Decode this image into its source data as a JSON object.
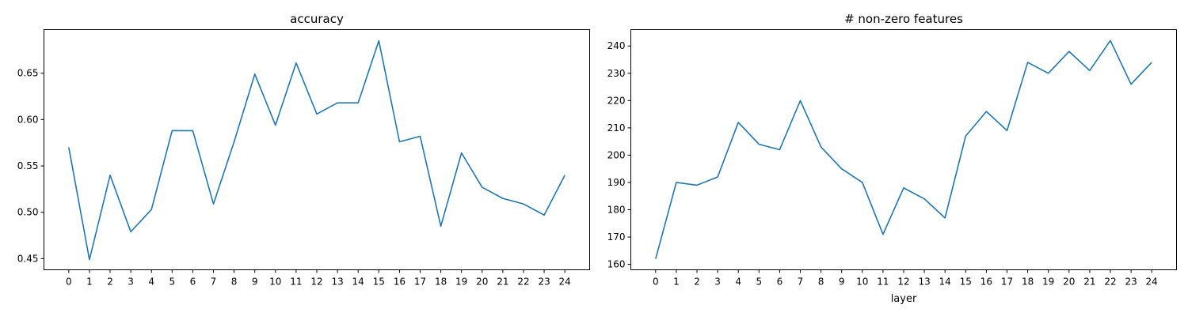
{
  "chart_data": [
    {
      "type": "line",
      "title": "accuracy",
      "xlabel": "",
      "ylabel": "",
      "x": [
        0,
        1,
        2,
        3,
        4,
        5,
        6,
        7,
        8,
        9,
        10,
        11,
        12,
        13,
        14,
        15,
        16,
        17,
        18,
        19,
        20,
        21,
        22,
        23,
        24
      ],
      "series": [
        {
          "name": "",
          "color": "#1f77b4",
          "values": [
            0.57,
            0.449,
            0.54,
            0.479,
            0.503,
            0.588,
            0.588,
            0.509,
            0.576,
            0.649,
            0.594,
            0.661,
            0.606,
            0.618,
            0.618,
            0.685,
            0.576,
            0.582,
            0.485,
            0.564,
            0.527,
            0.515,
            0.509,
            0.497,
            0.54
          ]
        }
      ],
      "xlim": [
        -1.2,
        25.2
      ],
      "ylim": [
        0.438,
        0.697
      ],
      "yticks": [
        0.45,
        0.5,
        0.55,
        0.6,
        0.65
      ],
      "ytick_labels": [
        "0.45",
        "0.50",
        "0.55",
        "0.60",
        "0.65"
      ],
      "grid": false,
      "legend": "none"
    },
    {
      "type": "line",
      "title": "# non-zero features",
      "xlabel": "layer",
      "ylabel": "",
      "x": [
        0,
        1,
        2,
        3,
        4,
        5,
        6,
        7,
        8,
        9,
        10,
        11,
        12,
        13,
        14,
        15,
        16,
        17,
        18,
        19,
        20,
        21,
        22,
        23,
        24
      ],
      "series": [
        {
          "name": "",
          "color": "#1f77b4",
          "values": [
            162,
            190,
            189,
            192,
            212,
            204,
            202,
            220,
            203,
            195,
            190,
            171,
            188,
            184,
            177,
            207,
            216,
            209,
            234,
            230,
            238,
            231,
            242,
            226,
            234
          ]
        }
      ],
      "xlim": [
        -1.2,
        25.2
      ],
      "ylim": [
        158,
        246
      ],
      "yticks": [
        160,
        170,
        180,
        190,
        200,
        210,
        220,
        230,
        240
      ],
      "ytick_labels": [
        "160",
        "170",
        "180",
        "190",
        "200",
        "210",
        "220",
        "230",
        "240"
      ],
      "grid": false,
      "legend": "none"
    }
  ]
}
